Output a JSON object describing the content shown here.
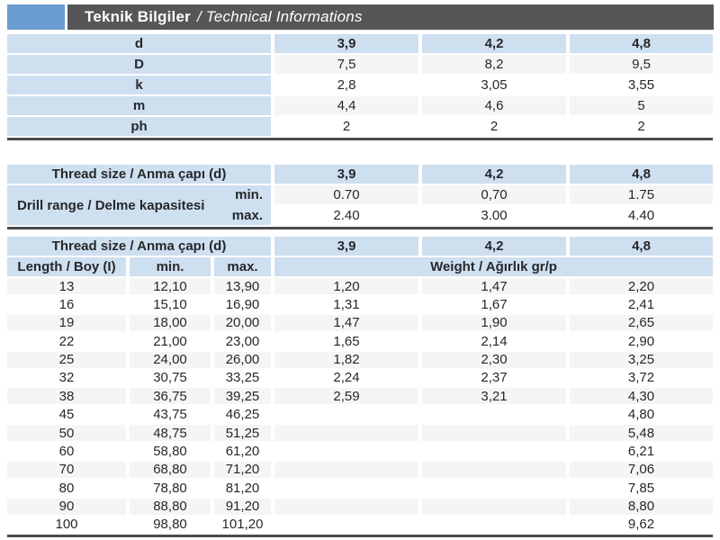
{
  "header": {
    "title_bold": "Teknik Bilgiler",
    "title_italic": "/ Technical Informations"
  },
  "colors": {
    "accent_blue": "#6a9bd3",
    "bar_gray": "#565659",
    "cell_blue": "#cedff0",
    "stripe_gray": "#f5f5f6",
    "border_dark": "#4b4b4d",
    "text": "#26282a"
  },
  "table1": {
    "rows": [
      {
        "label": "d",
        "header": true,
        "values": [
          "3,9",
          "4,2",
          "4,8"
        ]
      },
      {
        "label": "D",
        "header": false,
        "values": [
          "7,5",
          "8,2",
          "9,5"
        ]
      },
      {
        "label": "k",
        "header": false,
        "values": [
          "2,8",
          "3,05",
          "3,55"
        ]
      },
      {
        "label": "m",
        "header": false,
        "values": [
          "4,4",
          "4,6",
          "5"
        ]
      },
      {
        "label": "ph",
        "header": false,
        "values": [
          "2",
          "2",
          "2"
        ]
      }
    ]
  },
  "table2": {
    "header": {
      "label": "Thread size / Anma çapı (d)",
      "values": [
        "3,9",
        "4,2",
        "4,8"
      ]
    },
    "group_label": "Drill range / Delme kapasitesi",
    "rows": [
      {
        "sub": "min.",
        "values": [
          "0.70",
          "0,70",
          "1.75"
        ]
      },
      {
        "sub": "max.",
        "values": [
          "2.40",
          "3.00",
          "4.40"
        ]
      }
    ]
  },
  "table3": {
    "header": {
      "label": "Thread size / Anma çapı (d)",
      "values": [
        "3,9",
        "4,2",
        "4,8"
      ]
    },
    "subheader": {
      "length": "Length / Boy (I)",
      "min": "min.",
      "max": "max.",
      "weight": "Weight / Ağırlık gr/p"
    },
    "rows": [
      [
        "13",
        "12,10",
        "13,90",
        "1,20",
        "1,47",
        "2,20"
      ],
      [
        "16",
        "15,10",
        "16,90",
        "1,31",
        "1,67",
        "2,41"
      ],
      [
        "19",
        "18,00",
        "20,00",
        "1,47",
        "1,90",
        "2,65"
      ],
      [
        "22",
        "21,00",
        "23,00",
        "1,65",
        "2,14",
        "2,90"
      ],
      [
        "25",
        "24,00",
        "26,00",
        "1,82",
        "2,30",
        "3,25"
      ],
      [
        "32",
        "30,75",
        "33,25",
        "2,24",
        "2,37",
        "3,72"
      ],
      [
        "38",
        "36,75",
        "39,25",
        "2,59",
        "3,21",
        "4,30"
      ],
      [
        "45",
        "43,75",
        "46,25",
        "",
        "",
        "4,80"
      ],
      [
        "50",
        "48,75",
        "51,25",
        "",
        "",
        "5,48"
      ],
      [
        "60",
        "58,80",
        "61,20",
        "",
        "",
        "6,21"
      ],
      [
        "70",
        "68,80",
        "71,20",
        "",
        "",
        "7,06"
      ],
      [
        "80",
        "78,80",
        "81,20",
        "",
        "",
        "7,85"
      ],
      [
        "90",
        "88,80",
        "91,20",
        "",
        "",
        "8,80"
      ],
      [
        "100",
        "98,80",
        "101,20",
        "",
        "",
        "9,62"
      ]
    ]
  }
}
